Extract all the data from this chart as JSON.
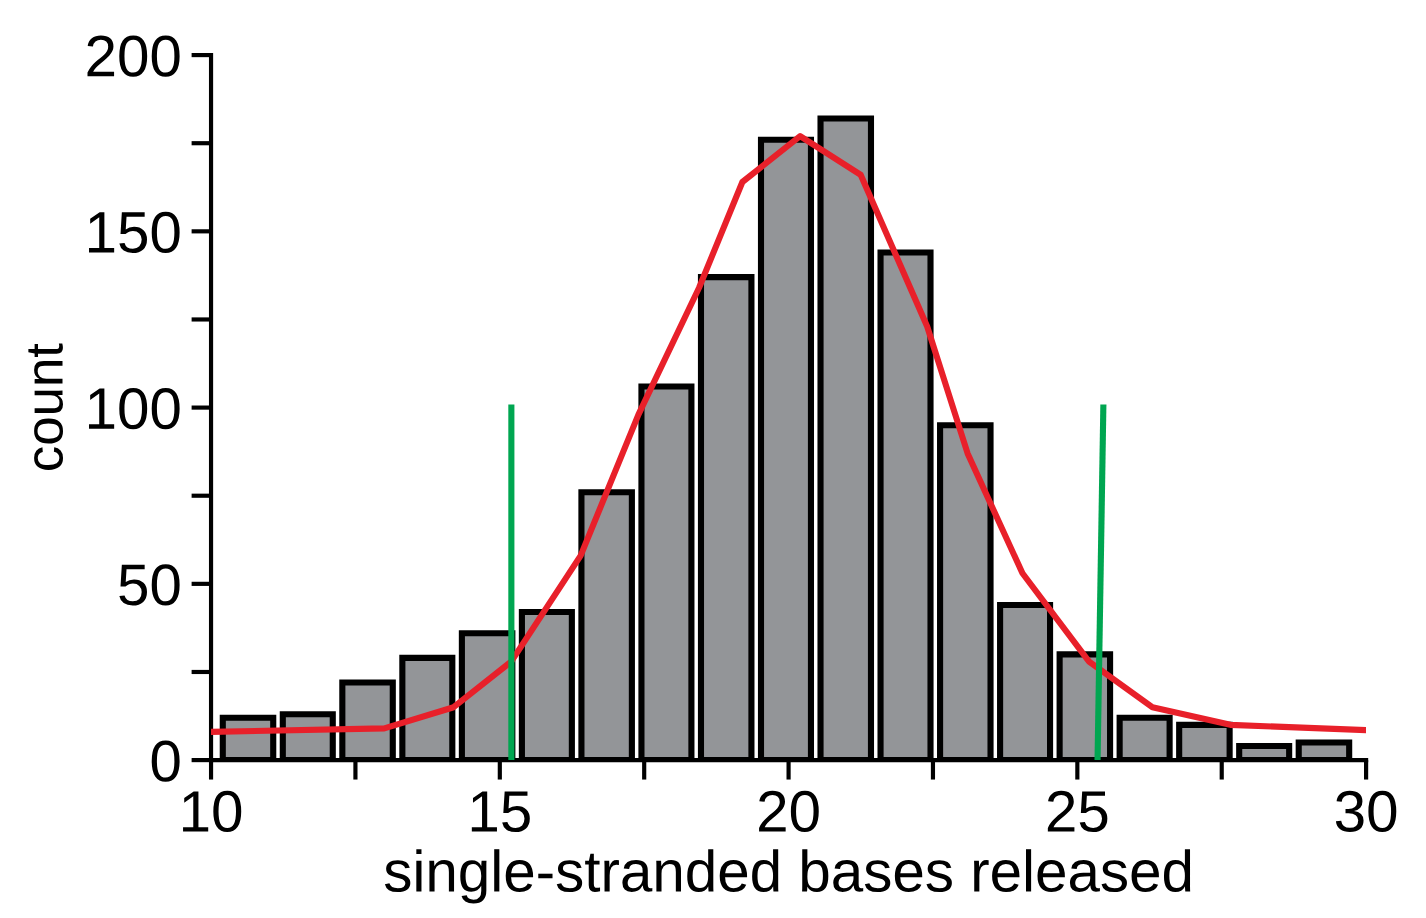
{
  "chart_data": {
    "type": "histogram",
    "xlabel": "single-stranded bases released",
    "ylabel": "count",
    "bins": [
      10.12,
      11.16,
      12.19,
      13.23,
      14.26,
      15.3,
      16.33,
      17.37,
      18.4,
      19.44,
      20.47,
      21.51,
      22.54,
      23.58,
      24.61,
      25.65,
      26.68,
      27.72,
      28.75,
      29.79
    ],
    "values": [
      12,
      13,
      22,
      29,
      36,
      42,
      76,
      106,
      137,
      176,
      182,
      144,
      95,
      44,
      30,
      12,
      10,
      4,
      5
    ],
    "color": "#939598",
    "series": [
      {
        "type": "line",
        "color": "#e8202a",
        "x": [
          10,
          13,
          14.2,
          15.2,
          16.4,
          17.4,
          18.45,
          19.2,
          20.2,
          21.25,
          22.4,
          23.1,
          24.05,
          25.2,
          26.3,
          27.65,
          30
        ],
        "values": [
          8,
          9,
          15,
          28,
          58,
          98,
          134,
          164,
          177,
          166,
          123,
          87,
          53,
          28,
          15,
          10,
          8.5
        ]
      },
      {
        "type": "line",
        "color": "#00a651",
        "x": [
          15.2,
          15.2
        ],
        "values": [
          0,
          100
        ]
      },
      {
        "type": "line",
        "color": "#00a651",
        "x": [
          25.35,
          25.45
        ],
        "values": [
          0,
          100
        ]
      }
    ],
    "xlim": [
      10,
      30
    ],
    "xticks": [
      10,
      {
        "value": 12.5,
        "label": null
      },
      15,
      {
        "value": 17.5,
        "label": null
      },
      20,
      {
        "value": 22.5,
        "label": null
      },
      25,
      {
        "value": 27.5,
        "label": null
      },
      30
    ],
    "ylim": [
      0,
      200
    ],
    "yticks": [
      0,
      {
        "value": 25,
        "label": null
      },
      50,
      {
        "value": 75,
        "label": null
      },
      100,
      {
        "value": 125,
        "label": null
      },
      150,
      {
        "value": 175,
        "label": null
      },
      200
    ],
    "grid": false,
    "legend": false
  }
}
